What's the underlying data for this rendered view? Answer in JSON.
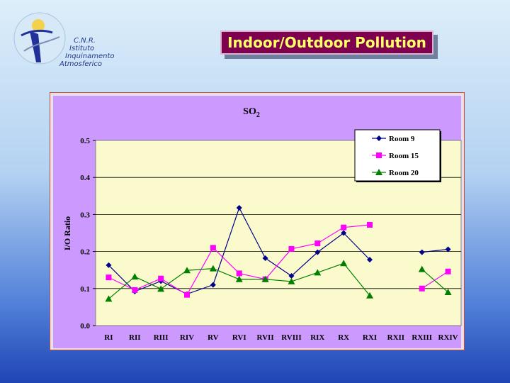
{
  "logo": {
    "lines": [
      "C.N.R.",
      "Istituto",
      "Inquinamento",
      "Atmosferico"
    ]
  },
  "slide_title": "Indoor/Outdoor Pollution",
  "colors": {
    "room9": "#00008b",
    "room15": "#ff00ff",
    "room20": "#008000",
    "plot_bg": "#fafacc",
    "chart_bg": "#cc99ff"
  },
  "chart_data": {
    "type": "line",
    "title": "SO2",
    "title_main": "SO",
    "title_sub": "2",
    "xlabel": "",
    "ylabel": "I/O Ratio",
    "ylim": [
      0,
      0.5
    ],
    "yticks": [
      "0.0",
      "0.1",
      "0.2",
      "0.3",
      "0.4",
      "0.5"
    ],
    "categories": [
      "RI",
      "RII",
      "RIII",
      "RIV",
      "RV",
      "RVI",
      "RVII",
      "RVIII",
      "RIX",
      "RX",
      "RXI",
      "RXII",
      "RXIII",
      "RXIV"
    ],
    "grid": "horizontal",
    "legend_position": "top-right",
    "series": [
      {
        "name": "Room 9",
        "marker": "diamond",
        "values": [
          0.163,
          0.092,
          0.12,
          0.085,
          0.11,
          0.318,
          0.182,
          0.134,
          0.198,
          0.25,
          0.178,
          null,
          0.198,
          0.206
        ]
      },
      {
        "name": "Room 15",
        "marker": "square",
        "values": [
          0.13,
          0.096,
          0.127,
          0.083,
          0.21,
          0.141,
          0.125,
          0.207,
          0.222,
          0.265,
          0.272,
          null,
          0.1,
          0.146
        ]
      },
      {
        "name": "Room 20",
        "marker": "triangle",
        "values": [
          0.072,
          0.132,
          0.099,
          0.149,
          0.154,
          0.125,
          0.125,
          0.119,
          0.143,
          0.168,
          0.081,
          null,
          0.152,
          0.09
        ]
      }
    ]
  }
}
